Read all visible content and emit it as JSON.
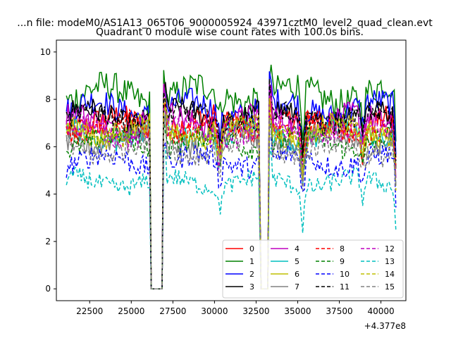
{
  "figure": {
    "suptitle": "...n file: modeM0/AS1A13_065T06_9000005924_43971cztM0_level2_quad_clean.evt"
  },
  "chart_data": {
    "type": "line",
    "title": "Quadrant 0 module wise count rates with 100.0s bins.",
    "xlabel": "",
    "ylabel": "",
    "x_offset_label": "+4.377e8",
    "xlim": [
      20500,
      41500
    ],
    "ylim": [
      -0.5,
      10.5
    ],
    "xticks": [
      22500,
      25000,
      27500,
      30000,
      32500,
      35000,
      37500,
      40000
    ],
    "xtick_labels": [
      "22500",
      "25000",
      "27500",
      "30000",
      "32500",
      "35000",
      "37500",
      "40000"
    ],
    "yticks": [
      0,
      2,
      4,
      6,
      8,
      10
    ],
    "ytick_labels": [
      "0",
      "2",
      "4",
      "6",
      "8",
      "10"
    ],
    "grid": false,
    "legend": {
      "placement": "lower-right",
      "columns": 4
    },
    "x_segments": [
      [
        21100,
        26100
      ],
      [
        26950,
        32700
      ],
      [
        33300,
        40950
      ]
    ],
    "gaps": [
      [
        26100,
        26950
      ],
      [
        32700,
        33300
      ]
    ],
    "series": [
      {
        "name": "0",
        "color": "#ff0000",
        "linestyle": "solid",
        "baseline": 7.0,
        "amp": 0.65
      },
      {
        "name": "1",
        "color": "#008000",
        "linestyle": "solid",
        "baseline": 8.2,
        "amp": 0.8
      },
      {
        "name": "2",
        "color": "#0000ff",
        "linestyle": "solid",
        "baseline": 7.6,
        "amp": 0.7
      },
      {
        "name": "3",
        "color": "#000000",
        "linestyle": "solid",
        "baseline": 7.3,
        "amp": 0.65
      },
      {
        "name": "4",
        "color": "#bf00bf",
        "linestyle": "solid",
        "baseline": 7.1,
        "amp": 0.65
      },
      {
        "name": "5",
        "color": "#00bfbf",
        "linestyle": "solid",
        "baseline": 6.5,
        "amp": 0.6
      },
      {
        "name": "6",
        "color": "#bfbf00",
        "linestyle": "solid",
        "baseline": 6.7,
        "amp": 0.6
      },
      {
        "name": "7",
        "color": "#808080",
        "linestyle": "solid",
        "baseline": 6.3,
        "amp": 0.6
      },
      {
        "name": "8",
        "color": "#ff0000",
        "linestyle": "dashed",
        "baseline": 6.8,
        "amp": 0.6
      },
      {
        "name": "9",
        "color": "#008000",
        "linestyle": "dashed",
        "baseline": 6.2,
        "amp": 0.6
      },
      {
        "name": "10",
        "color": "#0000ff",
        "linestyle": "dashed",
        "baseline": 5.4,
        "amp": 0.6
      },
      {
        "name": "11",
        "color": "#000000",
        "linestyle": "dashed",
        "baseline": 7.2,
        "amp": 0.6
      },
      {
        "name": "12",
        "color": "#bf00bf",
        "linestyle": "dashed",
        "baseline": 6.6,
        "amp": 0.6
      },
      {
        "name": "13",
        "color": "#00bfbf",
        "linestyle": "dashed",
        "baseline": 4.5,
        "amp": 0.5
      },
      {
        "name": "14",
        "color": "#bfbf00",
        "linestyle": "dashed",
        "baseline": 6.6,
        "amp": 0.6
      },
      {
        "name": "15",
        "color": "#808080",
        "linestyle": "dashed",
        "baseline": 5.9,
        "amp": 0.6
      }
    ]
  }
}
